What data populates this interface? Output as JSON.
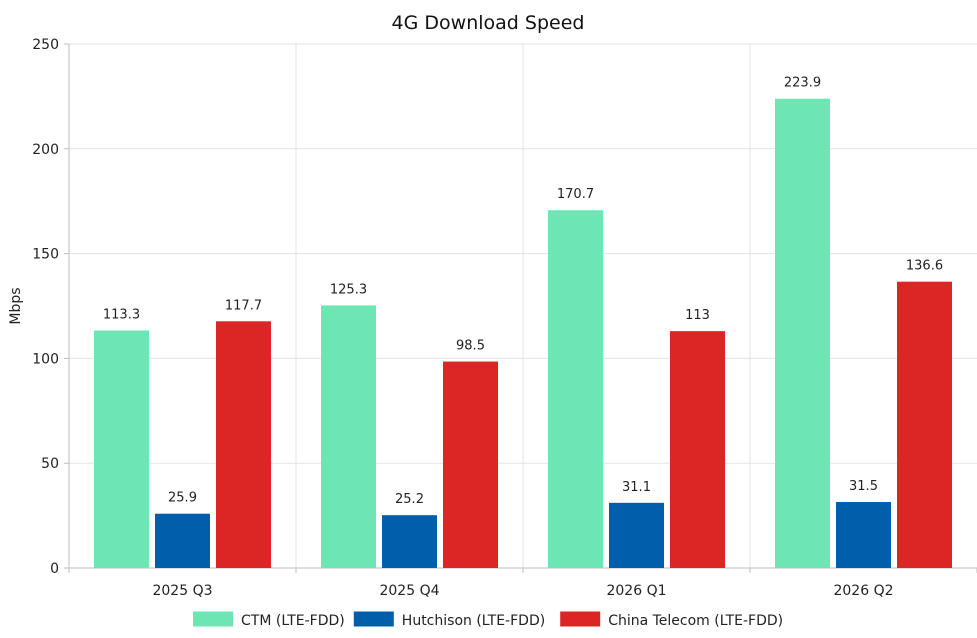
{
  "chart_data": {
    "type": "bar",
    "title": "4G Download Speed",
    "xlabel": "",
    "ylabel": "Mbps",
    "ylim": [
      0,
      250
    ],
    "yticks": [
      0,
      50,
      100,
      150,
      200,
      250
    ],
    "grid": true,
    "legend_position": "bottom",
    "categories": [
      "2025 Q3",
      "2025 Q4",
      "2026 Q1",
      "2026 Q2"
    ],
    "series": [
      {
        "name": "CTM (LTE-FDD)",
        "color": "#6ee6b4",
        "values": [
          113.3,
          125.3,
          170.7,
          223.9
        ]
      },
      {
        "name": "Hutchison (LTE-FDD)",
        "color": "#005eaa",
        "values": [
          25.9,
          25.2,
          31.1,
          31.5
        ]
      },
      {
        "name": "China Telecom (LTE-FDD)",
        "color": "#dc2626",
        "values": [
          117.7,
          98.5,
          113,
          136.6
        ]
      }
    ]
  }
}
